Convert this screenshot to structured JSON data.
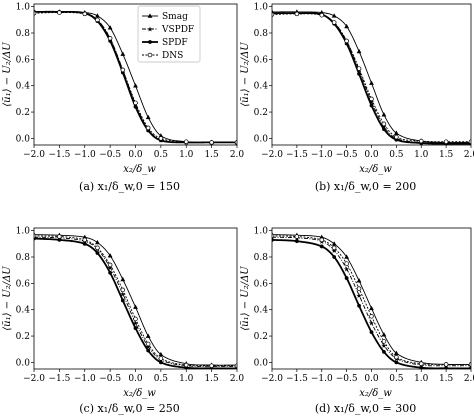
{
  "figure": {
    "legend": [
      "Smag",
      "VSPDF",
      "SPDF",
      "DNS"
    ],
    "xlabel": "x₂/δ_w",
    "ylabel": "⟨ũ₁⟩ − U₂/ΔU",
    "xticks": [
      "−2.0",
      "−1.5",
      "−1.0",
      "−0.5",
      "0.0",
      "0.5",
      "1.0",
      "1.5",
      "2.0"
    ],
    "yticks": [
      "0.0",
      "0.2",
      "0.4",
      "0.6",
      "0.8",
      "1.0"
    ]
  },
  "chart_data": [
    {
      "type": "line",
      "caption": "(a)  x₁/δ_w,0 = 150",
      "xlim": [
        -2.0,
        2.0
      ],
      "ylim": [
        -0.05,
        1.02
      ],
      "x": [
        -2.0,
        -1.5,
        -1.0,
        -0.75,
        -0.5,
        -0.25,
        0.0,
        0.25,
        0.5,
        1.0,
        1.5,
        2.0
      ],
      "series": [
        {
          "name": "Smag",
          "marker": "triangle",
          "values": [
            0.96,
            0.96,
            0.955,
            0.93,
            0.84,
            0.64,
            0.4,
            0.16,
            0.02,
            -0.025,
            -0.03,
            -0.03
          ]
        },
        {
          "name": "VSPDF",
          "marker": "star",
          "values": [
            0.96,
            0.96,
            0.95,
            0.9,
            0.76,
            0.52,
            0.26,
            0.07,
            -0.01,
            -0.03,
            -0.03,
            -0.03
          ]
        },
        {
          "name": "SPDF",
          "marker": "dot",
          "values": [
            0.96,
            0.96,
            0.95,
            0.89,
            0.74,
            0.5,
            0.24,
            0.06,
            -0.015,
            -0.03,
            -0.03,
            -0.03
          ]
        },
        {
          "name": "DNS",
          "marker": "circle",
          "values": [
            0.95,
            0.955,
            0.945,
            0.9,
            0.76,
            0.52,
            0.27,
            0.08,
            0.0,
            -0.025,
            -0.03,
            -0.03
          ]
        }
      ]
    },
    {
      "type": "line",
      "caption": "(b)  x₁/δ_w,0 = 200",
      "xlim": [
        -2.0,
        2.0
      ],
      "ylim": [
        -0.05,
        1.02
      ],
      "x": [
        -2.0,
        -1.5,
        -1.0,
        -0.75,
        -0.5,
        -0.25,
        0.0,
        0.25,
        0.5,
        1.0,
        1.5,
        2.0
      ],
      "series": [
        {
          "name": "Smag",
          "marker": "triangle",
          "values": [
            0.96,
            0.96,
            0.955,
            0.93,
            0.85,
            0.66,
            0.42,
            0.18,
            0.04,
            -0.02,
            -0.03,
            -0.03
          ]
        },
        {
          "name": "VSPDF",
          "marker": "star",
          "values": [
            0.95,
            0.95,
            0.94,
            0.88,
            0.74,
            0.52,
            0.28,
            0.09,
            0.0,
            -0.03,
            -0.035,
            -0.035
          ]
        },
        {
          "name": "SPDF",
          "marker": "dot",
          "values": [
            0.95,
            0.95,
            0.94,
            0.87,
            0.72,
            0.49,
            0.25,
            0.07,
            -0.01,
            -0.035,
            -0.04,
            -0.04
          ]
        },
        {
          "name": "DNS",
          "marker": "circle",
          "values": [
            0.94,
            0.945,
            0.935,
            0.88,
            0.74,
            0.53,
            0.3,
            0.11,
            0.01,
            -0.02,
            -0.025,
            -0.025
          ]
        }
      ]
    },
    {
      "type": "line",
      "caption": "(c)  x₁/δ_w,0 = 250",
      "xlim": [
        -2.0,
        2.0
      ],
      "ylim": [
        -0.05,
        1.02
      ],
      "x": [
        -2.0,
        -1.5,
        -1.0,
        -0.75,
        -0.5,
        -0.25,
        0.0,
        0.25,
        0.5,
        1.0,
        1.5,
        2.0
      ],
      "series": [
        {
          "name": "Smag",
          "marker": "triangle",
          "values": [
            0.97,
            0.965,
            0.95,
            0.91,
            0.81,
            0.63,
            0.42,
            0.2,
            0.06,
            -0.01,
            -0.02,
            -0.02
          ]
        },
        {
          "name": "VSPDF",
          "marker": "star",
          "values": [
            0.95,
            0.945,
            0.92,
            0.86,
            0.72,
            0.52,
            0.3,
            0.12,
            0.02,
            -0.025,
            -0.03,
            -0.03
          ]
        },
        {
          "name": "SPDF",
          "marker": "dot",
          "values": [
            0.94,
            0.93,
            0.9,
            0.83,
            0.68,
            0.47,
            0.26,
            0.09,
            0.0,
            -0.04,
            -0.045,
            -0.045
          ]
        },
        {
          "name": "DNS",
          "marker": "circle",
          "values": [
            0.96,
            0.955,
            0.93,
            0.87,
            0.74,
            0.55,
            0.33,
            0.14,
            0.03,
            -0.02,
            -0.025,
            -0.025
          ]
        }
      ]
    },
    {
      "type": "line",
      "caption": "(d)  x₁/δ_w,0 = 300",
      "xlim": [
        -2.0,
        2.0
      ],
      "ylim": [
        -0.05,
        1.02
      ],
      "x": [
        -2.0,
        -1.5,
        -1.0,
        -0.75,
        -0.5,
        -0.25,
        0.0,
        0.25,
        0.5,
        1.0,
        1.5,
        2.0
      ],
      "series": [
        {
          "name": "Smag",
          "marker": "triangle",
          "values": [
            0.97,
            0.965,
            0.95,
            0.9,
            0.8,
            0.62,
            0.41,
            0.21,
            0.07,
            0.0,
            -0.015,
            -0.015
          ]
        },
        {
          "name": "VSPDF",
          "marker": "star",
          "values": [
            0.95,
            0.945,
            0.92,
            0.85,
            0.71,
            0.51,
            0.3,
            0.13,
            0.03,
            -0.02,
            -0.025,
            -0.025
          ]
        },
        {
          "name": "SPDF",
          "marker": "dot",
          "values": [
            0.93,
            0.92,
            0.88,
            0.8,
            0.64,
            0.43,
            0.23,
            0.08,
            0.0,
            -0.04,
            -0.045,
            -0.045
          ]
        },
        {
          "name": "DNS",
          "marker": "circle",
          "values": [
            0.96,
            0.955,
            0.93,
            0.87,
            0.75,
            0.56,
            0.35,
            0.16,
            0.04,
            -0.01,
            -0.015,
            -0.015
          ]
        }
      ]
    }
  ]
}
